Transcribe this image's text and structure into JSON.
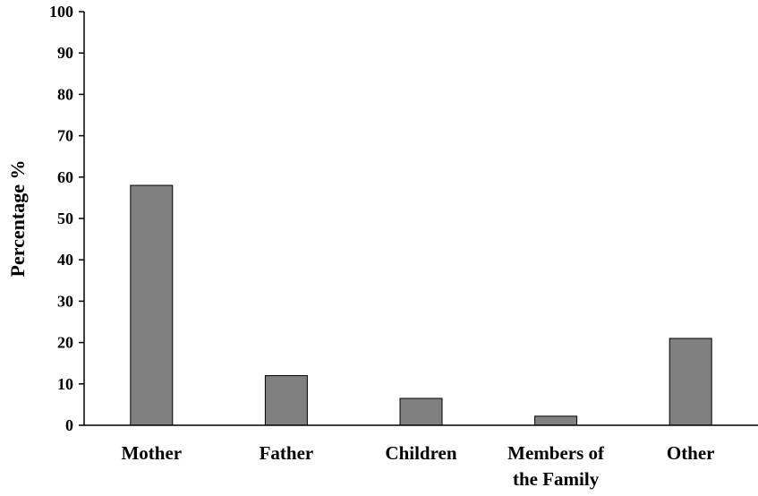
{
  "chart_data": {
    "type": "bar",
    "title": "",
    "xlabel": "",
    "ylabel": "Percentage %",
    "ylim": [
      0,
      100
    ],
    "yticks": [
      "0",
      "10",
      "20",
      "30",
      "40",
      "50",
      "60",
      "70",
      "80",
      "90",
      "100"
    ],
    "categories": [
      [
        "Mother"
      ],
      [
        "Father"
      ],
      [
        "Children"
      ],
      [
        "Members of",
        "the Family"
      ],
      [
        "Other"
      ]
    ],
    "values": [
      58,
      12,
      6.5,
      2.2,
      21
    ],
    "bar_color": "#808080",
    "grid": false,
    "legend": "none"
  }
}
